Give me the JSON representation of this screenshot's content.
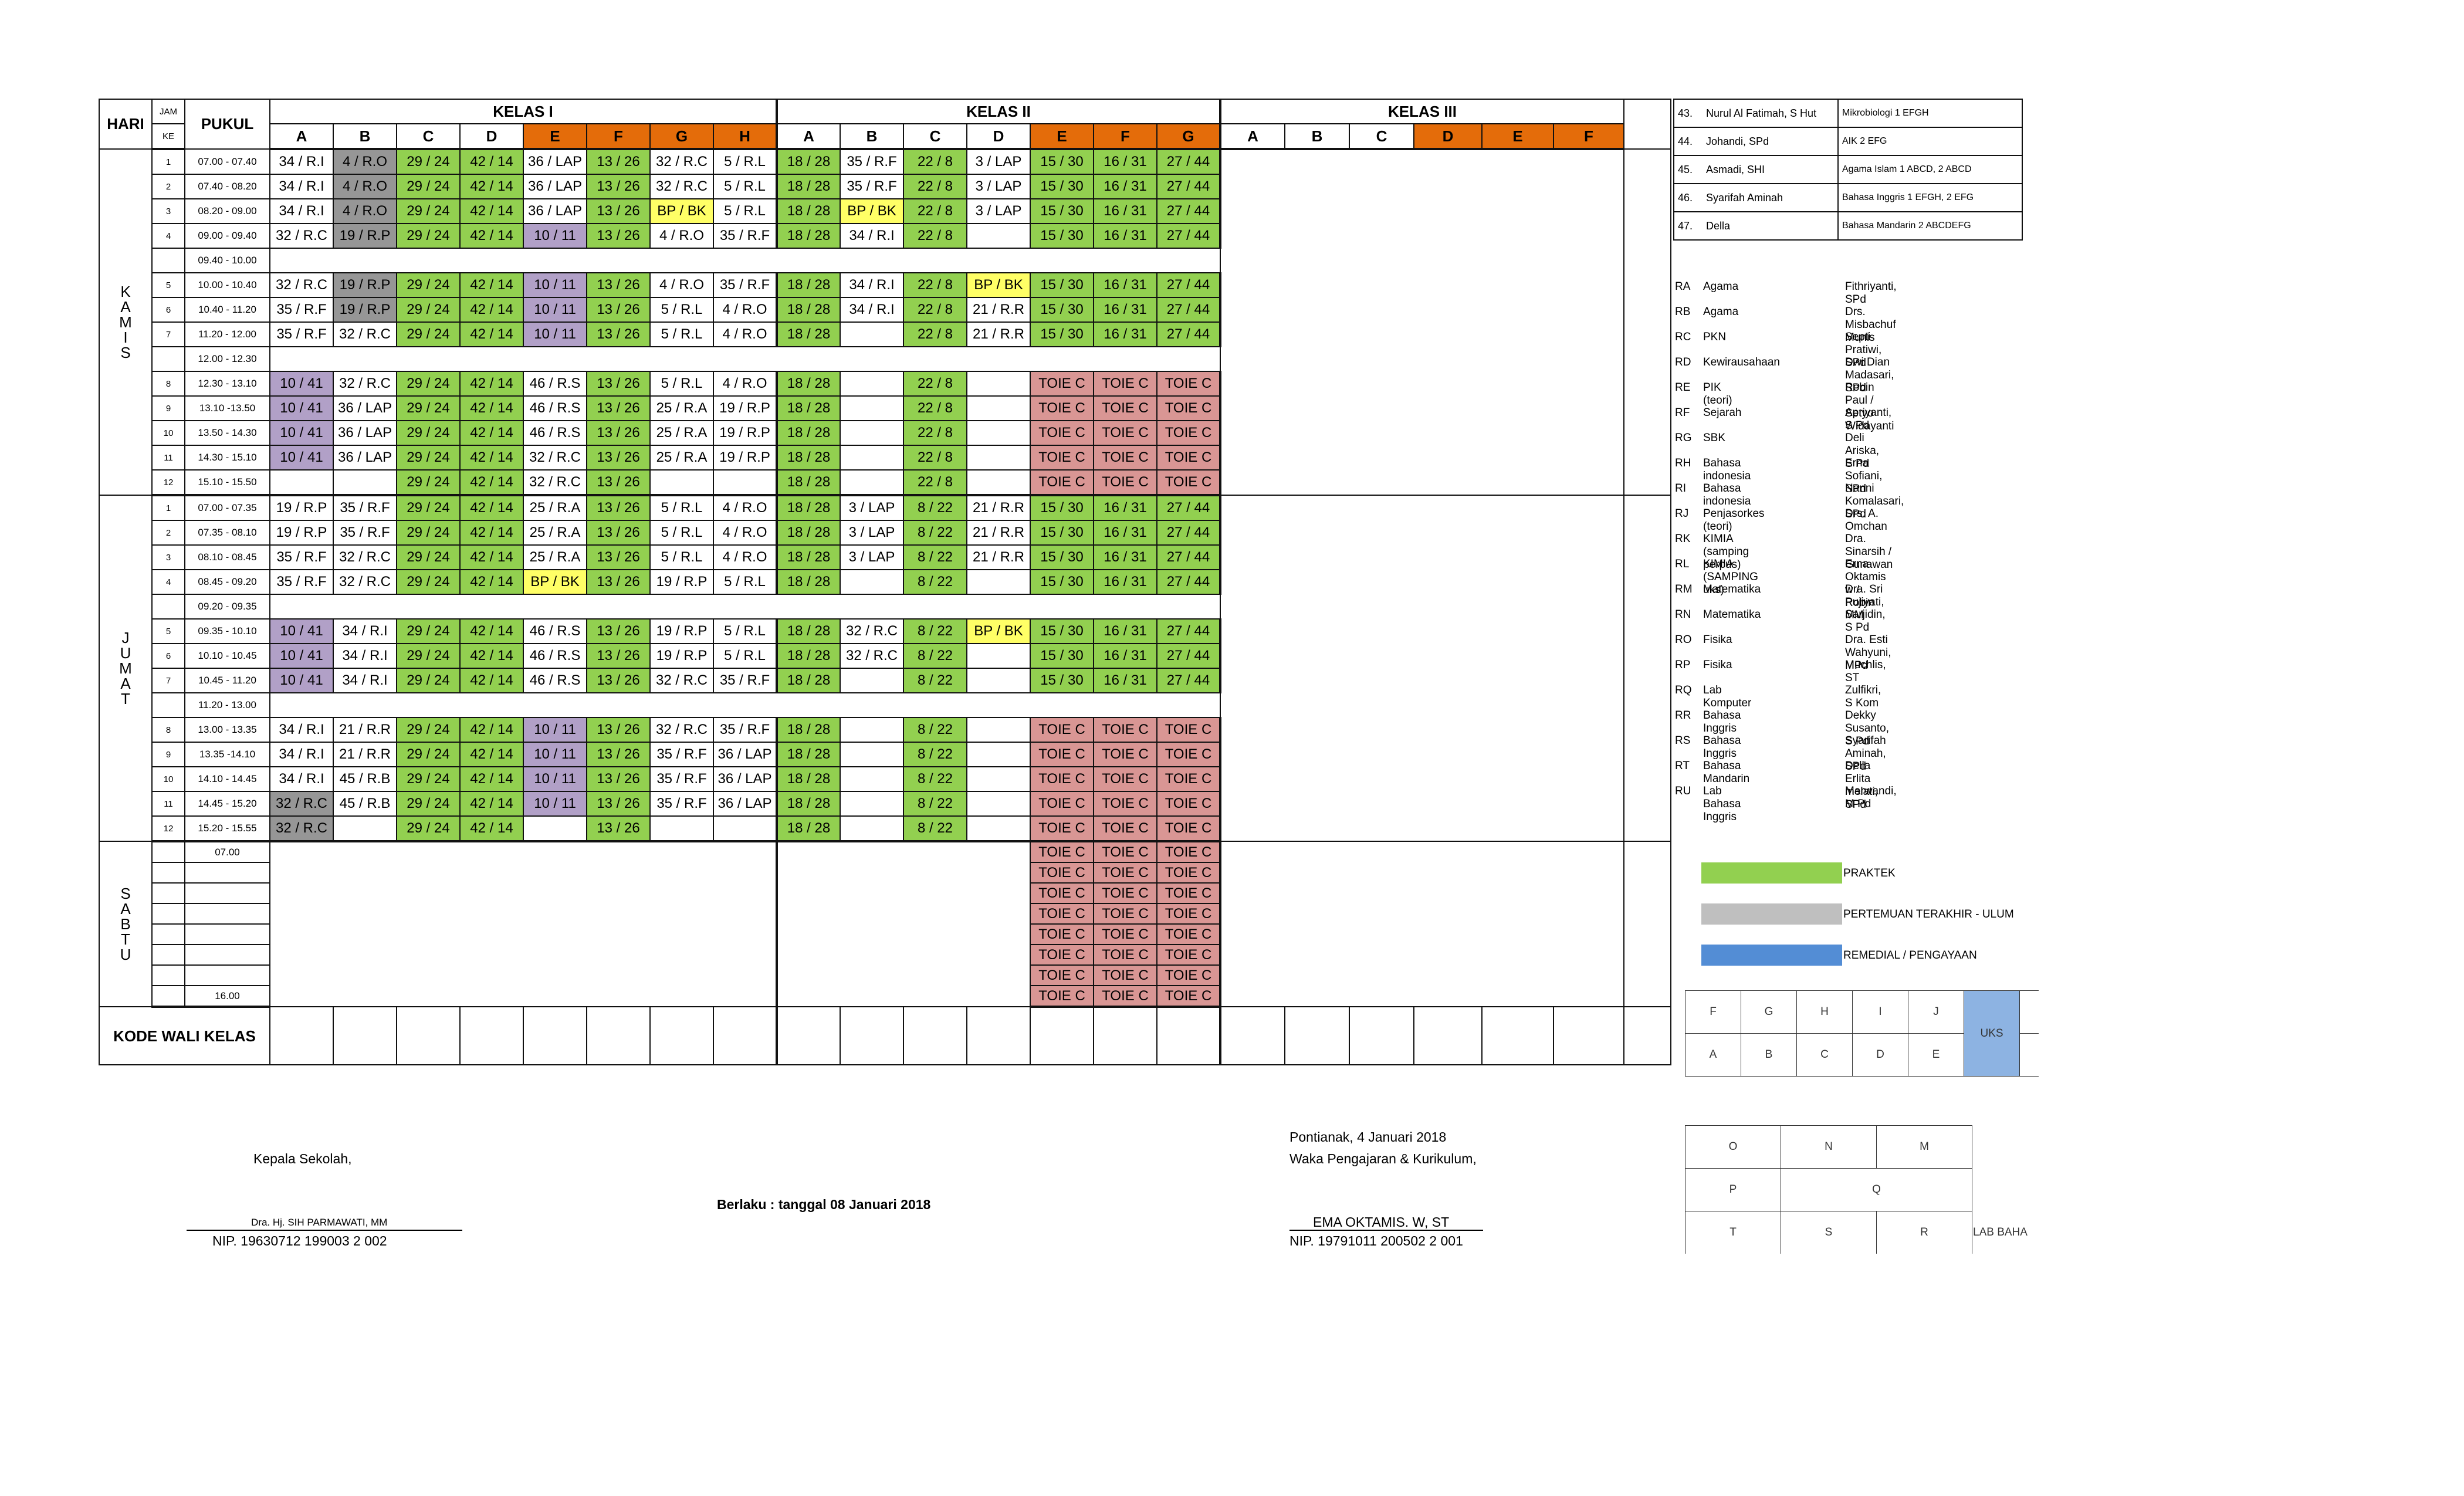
{
  "headers": {
    "hari": "HARI",
    "jam": "JAM",
    "ke": "KE",
    "pukul": "PUKUL",
    "kelas1": "KELAS I",
    "kelas2": "KELAS II",
    "kelas3": "KELAS III"
  },
  "cols1": [
    "A",
    "B",
    "C",
    "D",
    "E",
    "F",
    "G",
    "H"
  ],
  "cols2": [
    "A",
    "B",
    "C",
    "D",
    "E",
    "F",
    "G"
  ],
  "cols3": [
    "A",
    "B",
    "C",
    "D",
    "E",
    "F"
  ],
  "days": {
    "kamis": "KAMIS",
    "jumat": "JUMAT",
    "sabtu": "SABTU"
  },
  "kamis": [
    {
      "ke": "1",
      "pukul": "07.00 - 07.40",
      "cells": [
        "34 / R.I",
        "k:4 / R.O",
        "g:29 / 24",
        "g:42 / 14",
        "36 / LAP",
        "g:13 / 26",
        "32 / R.C",
        "5 / R.L",
        "g:18 / 28",
        "35 / R.F",
        "g:22 / 8",
        "3 / LAP",
        "g:15 / 30",
        "g:16 / 31",
        "g:27 / 44"
      ]
    },
    {
      "ke": "2",
      "pukul": "07.40 - 08.20",
      "cells": [
        "34 / R.I",
        "k:4 / R.O",
        "g:29 / 24",
        "g:42 / 14",
        "36 / LAP",
        "g:13 / 26",
        "32 / R.C",
        "5 / R.L",
        "g:18 / 28",
        "35 / R.F",
        "g:22 / 8",
        "3 / LAP",
        "g:15 / 30",
        "g:16 / 31",
        "g:27 / 44"
      ]
    },
    {
      "ke": "3",
      "pukul": "08.20 - 09.00",
      "cells": [
        "34 / R.I",
        "k:4 / R.O",
        "g:29 / 24",
        "g:42 / 14",
        "36 / LAP",
        "g:13 / 26",
        "y:BP / BK",
        "5 / R.L",
        "g:18 / 28",
        "y:BP / BK",
        "g:22 / 8",
        "3 / LAP",
        "g:15 / 30",
        "g:16 / 31",
        "g:27 / 44"
      ]
    },
    {
      "ke": "4",
      "pukul": "09.00 - 09.40",
      "cells": [
        "32 / R.C",
        "k:19 / R.P",
        "g:29 / 24",
        "g:42 / 14",
        "p:10 / 11",
        "g:13 / 26",
        "4 / R.O",
        "35 / R.F",
        "g:18 / 28",
        "34 / R.I",
        "g:22 / 8",
        "",
        "g:15 / 30",
        "g:16 / 31",
        "g:27 / 44"
      ]
    },
    {
      "ke": "",
      "pukul": "09.40 - 10.00",
      "brk": true
    },
    {
      "ke": "5",
      "pukul": "10.00 - 10.40",
      "cells": [
        "32 / R.C",
        "k:19 / R.P",
        "g:29 / 24",
        "g:42 / 14",
        "p:10 / 11",
        "g:13 / 26",
        "4 / R.O",
        "35 / R.F",
        "g:18 / 28",
        "34 / R.I",
        "g:22 / 8",
        "y:BP / BK",
        "g:15 / 30",
        "g:16 / 31",
        "g:27 / 44"
      ]
    },
    {
      "ke": "6",
      "pukul": "10.40 - 11.20",
      "cells": [
        "35 / R.F",
        "k:19 / R.P",
        "g:29 / 24",
        "g:42 / 14",
        "p:10 / 11",
        "g:13 / 26",
        "5 / R.L",
        "4 / R.O",
        "g:18 / 28",
        "34 / R.I",
        "g:22 / 8",
        "21 / R.R",
        "g:15 / 30",
        "g:16 / 31",
        "g:27 / 44"
      ]
    },
    {
      "ke": "7",
      "pukul": "11.20 - 12.00",
      "cells": [
        "35 / R.F",
        "32 / R.C",
        "g:29 / 24",
        "g:42 / 14",
        "p:10 / 11",
        "g:13 / 26",
        "5 / R.L",
        "4 / R.O",
        "g:18 / 28",
        "",
        "g:22 / 8",
        "21 / R.R",
        "g:15 / 30",
        "g:16 / 31",
        "g:27 / 44"
      ]
    },
    {
      "ke": "",
      "pukul": "12.00 - 12.30",
      "brk": true
    },
    {
      "ke": "8",
      "pukul": "12.30 - 13.10",
      "cells": [
        "p:10 / 41",
        "32 / R.C",
        "g:29 / 24",
        "g:42 / 14",
        "46 / R.S",
        "g:13 / 26",
        "5 / R.L",
        "4 / R.O",
        "g:18 / 28",
        "",
        "g:22 / 8",
        "",
        "r:TOIE C",
        "r:TOIE C",
        "r:TOIE C"
      ]
    },
    {
      "ke": "9",
      "pukul": "13.10 -13.50",
      "cells": [
        "p:10 / 41",
        "36 / LAP",
        "g:29 / 24",
        "g:42 / 14",
        "46 / R.S",
        "g:13 / 26",
        "25 / R.A",
        "19 / R.P",
        "g:18 / 28",
        "",
        "g:22 / 8",
        "",
        "r:TOIE C",
        "r:TOIE C",
        "r:TOIE C"
      ]
    },
    {
      "ke": "10",
      "pukul": "13.50 - 14.30",
      "cells": [
        "p:10 / 41",
        "36 / LAP",
        "g:29 / 24",
        "g:42 / 14",
        "46 / R.S",
        "g:13 / 26",
        "25 / R.A",
        "19 / R.P",
        "g:18 / 28",
        "",
        "g:22 / 8",
        "",
        "r:TOIE C",
        "r:TOIE C",
        "r:TOIE C"
      ]
    },
    {
      "ke": "11",
      "pukul": "14.30 - 15.10",
      "cells": [
        "p:10 / 41",
        "36 / LAP",
        "g:29 / 24",
        "g:42 / 14",
        "32 / R.C",
        "g:13 / 26",
        "25 / R.A",
        "19 / R.P",
        "g:18 / 28",
        "",
        "g:22 / 8",
        "",
        "r:TOIE C",
        "r:TOIE C",
        "r:TOIE C"
      ]
    },
    {
      "ke": "12",
      "pukul": "15.10 - 15.50",
      "cells": [
        "",
        "",
        "g:29 / 24",
        "g:42 / 14",
        "32 / R.C",
        "g:13 / 26",
        "",
        "",
        "g:18 / 28",
        "",
        "g:22 / 8",
        "",
        "r:TOIE C",
        "r:TOIE C",
        "r:TOIE C"
      ]
    }
  ],
  "jumat": [
    {
      "ke": "1",
      "pukul": "07.00 - 07.35",
      "cells": [
        "19 / R.P",
        "35 / R.F",
        "g:29 / 24",
        "g:42 / 14",
        "25 / R.A",
        "g:13 / 26",
        "5 / R.L",
        "4 / R.O",
        "g:18 / 28",
        "3 / LAP",
        "g:8 / 22",
        "21 / R.R",
        "g:15 / 30",
        "g:16 / 31",
        "g:27 / 44"
      ]
    },
    {
      "ke": "2",
      "pukul": "07.35 - 08.10",
      "cells": [
        "19 / R.P",
        "35 / R.F",
        "g:29 / 24",
        "g:42 / 14",
        "25 / R.A",
        "g:13 / 26",
        "5 / R.L",
        "4 / R.O",
        "g:18 / 28",
        "3 / LAP",
        "g:8 / 22",
        "21 / R.R",
        "g:15 / 30",
        "g:16 / 31",
        "g:27 / 44"
      ]
    },
    {
      "ke": "3",
      "pukul": "08.10 - 08.45",
      "cells": [
        "35 / R.F",
        "32 / R.C",
        "g:29 / 24",
        "g:42 / 14",
        "25 / R.A",
        "g:13 / 26",
        "5 / R.L",
        "4 / R.O",
        "g:18 / 28",
        "3 / LAP",
        "g:8 / 22",
        "21 / R.R",
        "g:15 / 30",
        "g:16 / 31",
        "g:27 / 44"
      ]
    },
    {
      "ke": "4",
      "pukul": "08.45 - 09.20",
      "cells": [
        "35 / R.F",
        "32 / R.C",
        "g:29 / 24",
        "g:42 / 14",
        "y:BP / BK",
        "g:13 / 26",
        "19 / R.P",
        "5 / R.L",
        "g:18 / 28",
        "",
        "g:8 / 22",
        "",
        "g:15 / 30",
        "g:16 / 31",
        "g:27 / 44"
      ]
    },
    {
      "ke": "",
      "pukul": "09.20 - 09.35",
      "brk": true
    },
    {
      "ke": "5",
      "pukul": "09.35 - 10.10",
      "cells": [
        "p:10 / 41",
        "34 / R.I",
        "g:29 / 24",
        "g:42 / 14",
        "46 / R.S",
        "g:13 / 26",
        "19 / R.P",
        "5 / R.L",
        "g:18 / 28",
        "32 / R.C",
        "g:8 / 22",
        "y:BP / BK",
        "g:15 / 30",
        "g:16 / 31",
        "g:27 / 44"
      ]
    },
    {
      "ke": "6",
      "pukul": "10.10 - 10.45",
      "cells": [
        "p:10 / 41",
        "34 / R.I",
        "g:29 / 24",
        "g:42 / 14",
        "46 / R.S",
        "g:13 / 26",
        "19 / R.P",
        "5 / R.L",
        "g:18 / 28",
        "32 / R.C",
        "g:8 / 22",
        "",
        "g:15 / 30",
        "g:16 / 31",
        "g:27 / 44"
      ]
    },
    {
      "ke": "7",
      "pukul": "10.45 - 11.20",
      "cells": [
        "p:10 / 41",
        "34 / R.I",
        "g:29 / 24",
        "g:42 / 14",
        "46 / R.S",
        "g:13 / 26",
        "32 / R.C",
        "35 / R.F",
        "g:18 / 28",
        "",
        "g:8 / 22",
        "",
        "g:15 / 30",
        "g:16 / 31",
        "g:27 / 44"
      ]
    },
    {
      "ke": "",
      "pukul": "11.20 - 13.00",
      "brk": true
    },
    {
      "ke": "8",
      "pukul": "13.00 - 13.35",
      "cells": [
        "34 / R.I",
        "21 / R.R",
        "g:29 / 24",
        "g:42 / 14",
        "p:10 / 11",
        "g:13 / 26",
        "32 / R.C",
        "35 / R.F",
        "g:18 / 28",
        "",
        "g:8 / 22",
        "",
        "r:TOIE C",
        "r:TOIE C",
        "r:TOIE C"
      ]
    },
    {
      "ke": "9",
      "pukul": "13.35 -14.10",
      "cells": [
        "34 / R.I",
        "21 / R.R",
        "g:29 / 24",
        "g:42 / 14",
        "p:10 / 11",
        "g:13 / 26",
        "35 / R.F",
        "36 / LAP",
        "g:18 / 28",
        "",
        "g:8 / 22",
        "",
        "r:TOIE C",
        "r:TOIE C",
        "r:TOIE C"
      ]
    },
    {
      "ke": "10",
      "pukul": "14.10 - 14.45",
      "cells": [
        "34 / R.I",
        "45 / R.B",
        "g:29 / 24",
        "g:42 / 14",
        "p:10 / 11",
        "g:13 / 26",
        "35 / R.F",
        "36 / LAP",
        "g:18 / 28",
        "",
        "g:8 / 22",
        "",
        "r:TOIE C",
        "r:TOIE C",
        "r:TOIE C"
      ]
    },
    {
      "ke": "11",
      "pukul": "14.45 - 15.20",
      "cells": [
        "k:32 / R.C",
        "45 / R.B",
        "g:29 / 24",
        "g:42 / 14",
        "p:10 / 11",
        "g:13 / 26",
        "35 / R.F",
        "36 / LAP",
        "g:18 / 28",
        "",
        "g:8 / 22",
        "",
        "r:TOIE C",
        "r:TOIE C",
        "r:TOIE C"
      ]
    },
    {
      "ke": "12",
      "pukul": "15.20 - 15.55",
      "cells": [
        "k:32 / R.C",
        "",
        "g:29 / 24",
        "g:42 / 14",
        "",
        "g:13 / 26",
        "",
        "",
        "g:18 / 28",
        "",
        "g:8 / 22",
        "",
        "r:TOIE C",
        "r:TOIE C",
        "r:TOIE C"
      ]
    }
  ],
  "sabtu": {
    "start": "07.00",
    "end": "16.00",
    "toie": "TOIE C",
    "rows": 8
  },
  "kode_wali": "KODE WALI KELAS",
  "teachers": [
    {
      "no": "43.",
      "name": "Nurul Al Fatimah, S Hut",
      "subj": "Mikrobiologi 1 EFGH"
    },
    {
      "no": "44.",
      "name": "Johandi, SPd",
      "subj": "AIK 2 EFG"
    },
    {
      "no": "45.",
      "name": "Asmadi, SHI",
      "subj": "Agama Islam 1 ABCD, 2 ABCD"
    },
    {
      "no": "46.",
      "name": "Syarifah Aminah",
      "subj": "Bahasa Inggris 1 EFGH, 2 EFG"
    },
    {
      "no": "47.",
      "name": "Della",
      "subj": "Bahasa Mandarin 2 ABCDEFG"
    }
  ],
  "rooms": [
    {
      "k": "RA",
      "s": "Agama",
      "t": "Fithriyanti, SPd"
    },
    {
      "k": "RB",
      "s": "Agama",
      "t": "Drs. Misbachuf Munis"
    },
    {
      "k": "RC",
      "s": "PKN",
      "t": "Septi Pratiwi, SPd"
    },
    {
      "k": "RD",
      "s": "Kewirausahaan",
      "t": "Dwi Dian Madasari, SPd"
    },
    {
      "k": "RE",
      "s": "PIK (teori)",
      "t": "Robin Paul / Setyo Widayanti"
    },
    {
      "k": "RF",
      "s": "Sejarah",
      "t": "Apriyanti, S Pd"
    },
    {
      "k": "RG",
      "s": "SBK",
      "t": "Deli Ariska, S Pd"
    },
    {
      "k": "RH",
      "s": "Bahasa indonesia",
      "t": "Erna Sofiani, SPd"
    },
    {
      "k": "RI",
      "s": "Bahasa indonesia",
      "t": "Nanni Komalasari, SPd"
    },
    {
      "k": "RJ",
      "s": "Penjasorkes (teori)",
      "t": "Drs. A. Omchan"
    },
    {
      "k": "RK",
      "s": "KIMIA  (samping perpus)",
      "t": "Dra. Sinarsih / Gunawan"
    },
    {
      "k": "RL",
      "s": "KIMIA (SAMPING uks)",
      "t": "Erna Oktamis w / Robin"
    },
    {
      "k": "RM",
      "s": "Matematika",
      "t": "Dra. Sri Pujiyati, MM"
    },
    {
      "k": "RN",
      "s": "Matematika",
      "t": "Sarjidin, S Pd"
    },
    {
      "k": "RO",
      "s": "Fisika",
      "t": "Dra. Esti Wahyuni, MPd"
    },
    {
      "k": "RP",
      "s": "Fisika",
      "t": "Muchlis, ST"
    },
    {
      "k": "RQ",
      "s": "Lab Komputer",
      "t": "Zulfikri, S Kom"
    },
    {
      "k": "RR",
      "s": "Bahasa Inggris",
      "t": "Dekky Susanto, S Pd"
    },
    {
      "k": "RS",
      "s": "Bahasa Inggris",
      "t": "Syarifah Aminah, SPd"
    },
    {
      "k": "RT",
      "s": "Bahasa Mandarin",
      "t": "Della Erlita melati, SPd"
    },
    {
      "k": "RU",
      "s": "Lab Bahasa Inggris",
      "t": "Marwandi, M Pd"
    }
  ],
  "legend": [
    {
      "label": "PRAKTEK",
      "color": "#92d050"
    },
    {
      "label": "PERTEMUAN TERAKHIR  - ULUM",
      "color": "#bfbfbf"
    },
    {
      "label": "REMEDIAL / PENGAYAAN",
      "color": "#538dd5"
    }
  ],
  "denah": {
    "row1": [
      "F",
      "G",
      "H",
      "I",
      "J"
    ],
    "row2": [
      "A",
      "B",
      "C",
      "D",
      "E"
    ],
    "uks": "UKS",
    "b1": [
      "O",
      "N",
      "M"
    ],
    "b2": [
      "P",
      "Q"
    ],
    "b3": [
      "T",
      "S",
      "R"
    ],
    "lab": "LAB BAHA"
  },
  "footer": {
    "kepala": "Kepala Sekolah,",
    "kepala_name": "Dra. Hj. SIH PARMAWATI, MM",
    "kepala_nip": "NIP. 19630712 199003 2 002",
    "berlaku": "Berlaku : tanggal 08 Januari 2018",
    "place_date": "Pontianak, 4 Januari 2018",
    "waka": "Waka Pengajaran & Kurikulum,",
    "waka_name": "EMA OKTAMIS. W, ST",
    "waka_nip": "NIP. 19791011 200502 2 001"
  },
  "colors": {
    "praktek": "#92d050",
    "header_orange": "#e46c0a",
    "toie": "#d99694",
    "purple": "#b1a0c7",
    "grey": "#969696",
    "bpbk": "#ffff66"
  }
}
